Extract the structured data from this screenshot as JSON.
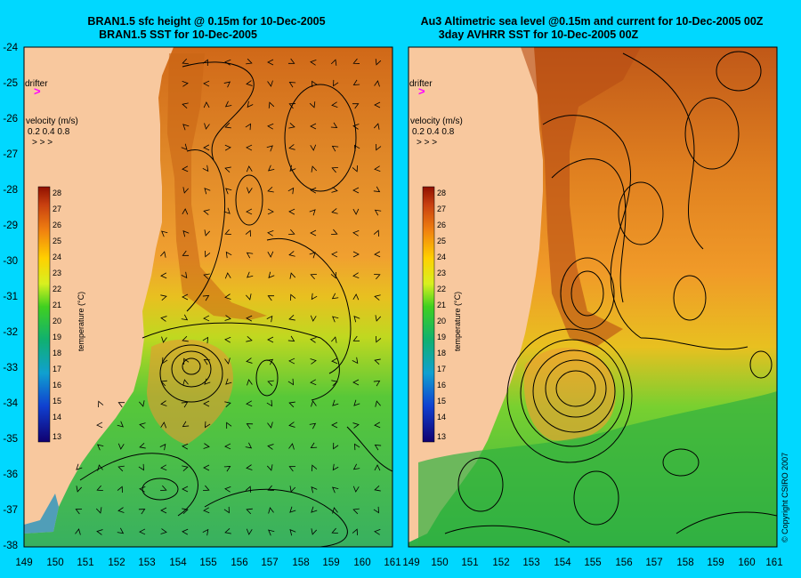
{
  "panels": [
    {
      "title_line1": "BRAN1.5 sfc height @ 0.15m for 10-Dec-2005",
      "title_line2": "BRAN1.5 SST for 10-Dec-2005"
    },
    {
      "title_line1": "Au3 Altimetric sea level  @0.15m and current for 10-Dec-2005 00Z",
      "title_line2": "3day AVHRR SST for 10-Dec-2005 00Z"
    }
  ],
  "map": {
    "lat_labels": [
      "-24",
      "-25",
      "-26",
      "-27",
      "-28",
      "-29",
      "-30",
      "-31",
      "-32",
      "-33",
      "-34",
      "-35",
      "-36",
      "-37",
      "-38"
    ],
    "lon_labels": [
      "149",
      "150",
      "151",
      "152",
      "153",
      "154",
      "155",
      "156",
      "157",
      "158",
      "159",
      "160",
      "161"
    ],
    "lon_labels_right": [
      "149",
      "150",
      "151",
      "152",
      "153",
      "154",
      "155",
      "156",
      "157",
      "158",
      "159",
      "160",
      "161"
    ]
  },
  "legend": {
    "drifter_label": "drifter",
    "drifter_symbol": ">",
    "drifter_color": "#ff00ff",
    "velocity_title": "velocity (m/s)",
    "velocity_values": "0.2 0.4 0.8",
    "velocity_arrows": "> >  >",
    "temperature_label": "temperature (°C)",
    "temperature_values": [
      "28",
      "27",
      "26",
      "25",
      "24",
      "23",
      "22",
      "21",
      "20",
      "19",
      "18",
      "17",
      "16",
      "15",
      "14",
      "13"
    ]
  },
  "copyright": "© Copyright CSIRO 2007",
  "colors": {
    "background": "#00d8ff",
    "land": "#f8c89e",
    "warm": "#c05010",
    "mid": "#ffc800",
    "cool": "#30c030",
    "cold": "#1030c0"
  }
}
